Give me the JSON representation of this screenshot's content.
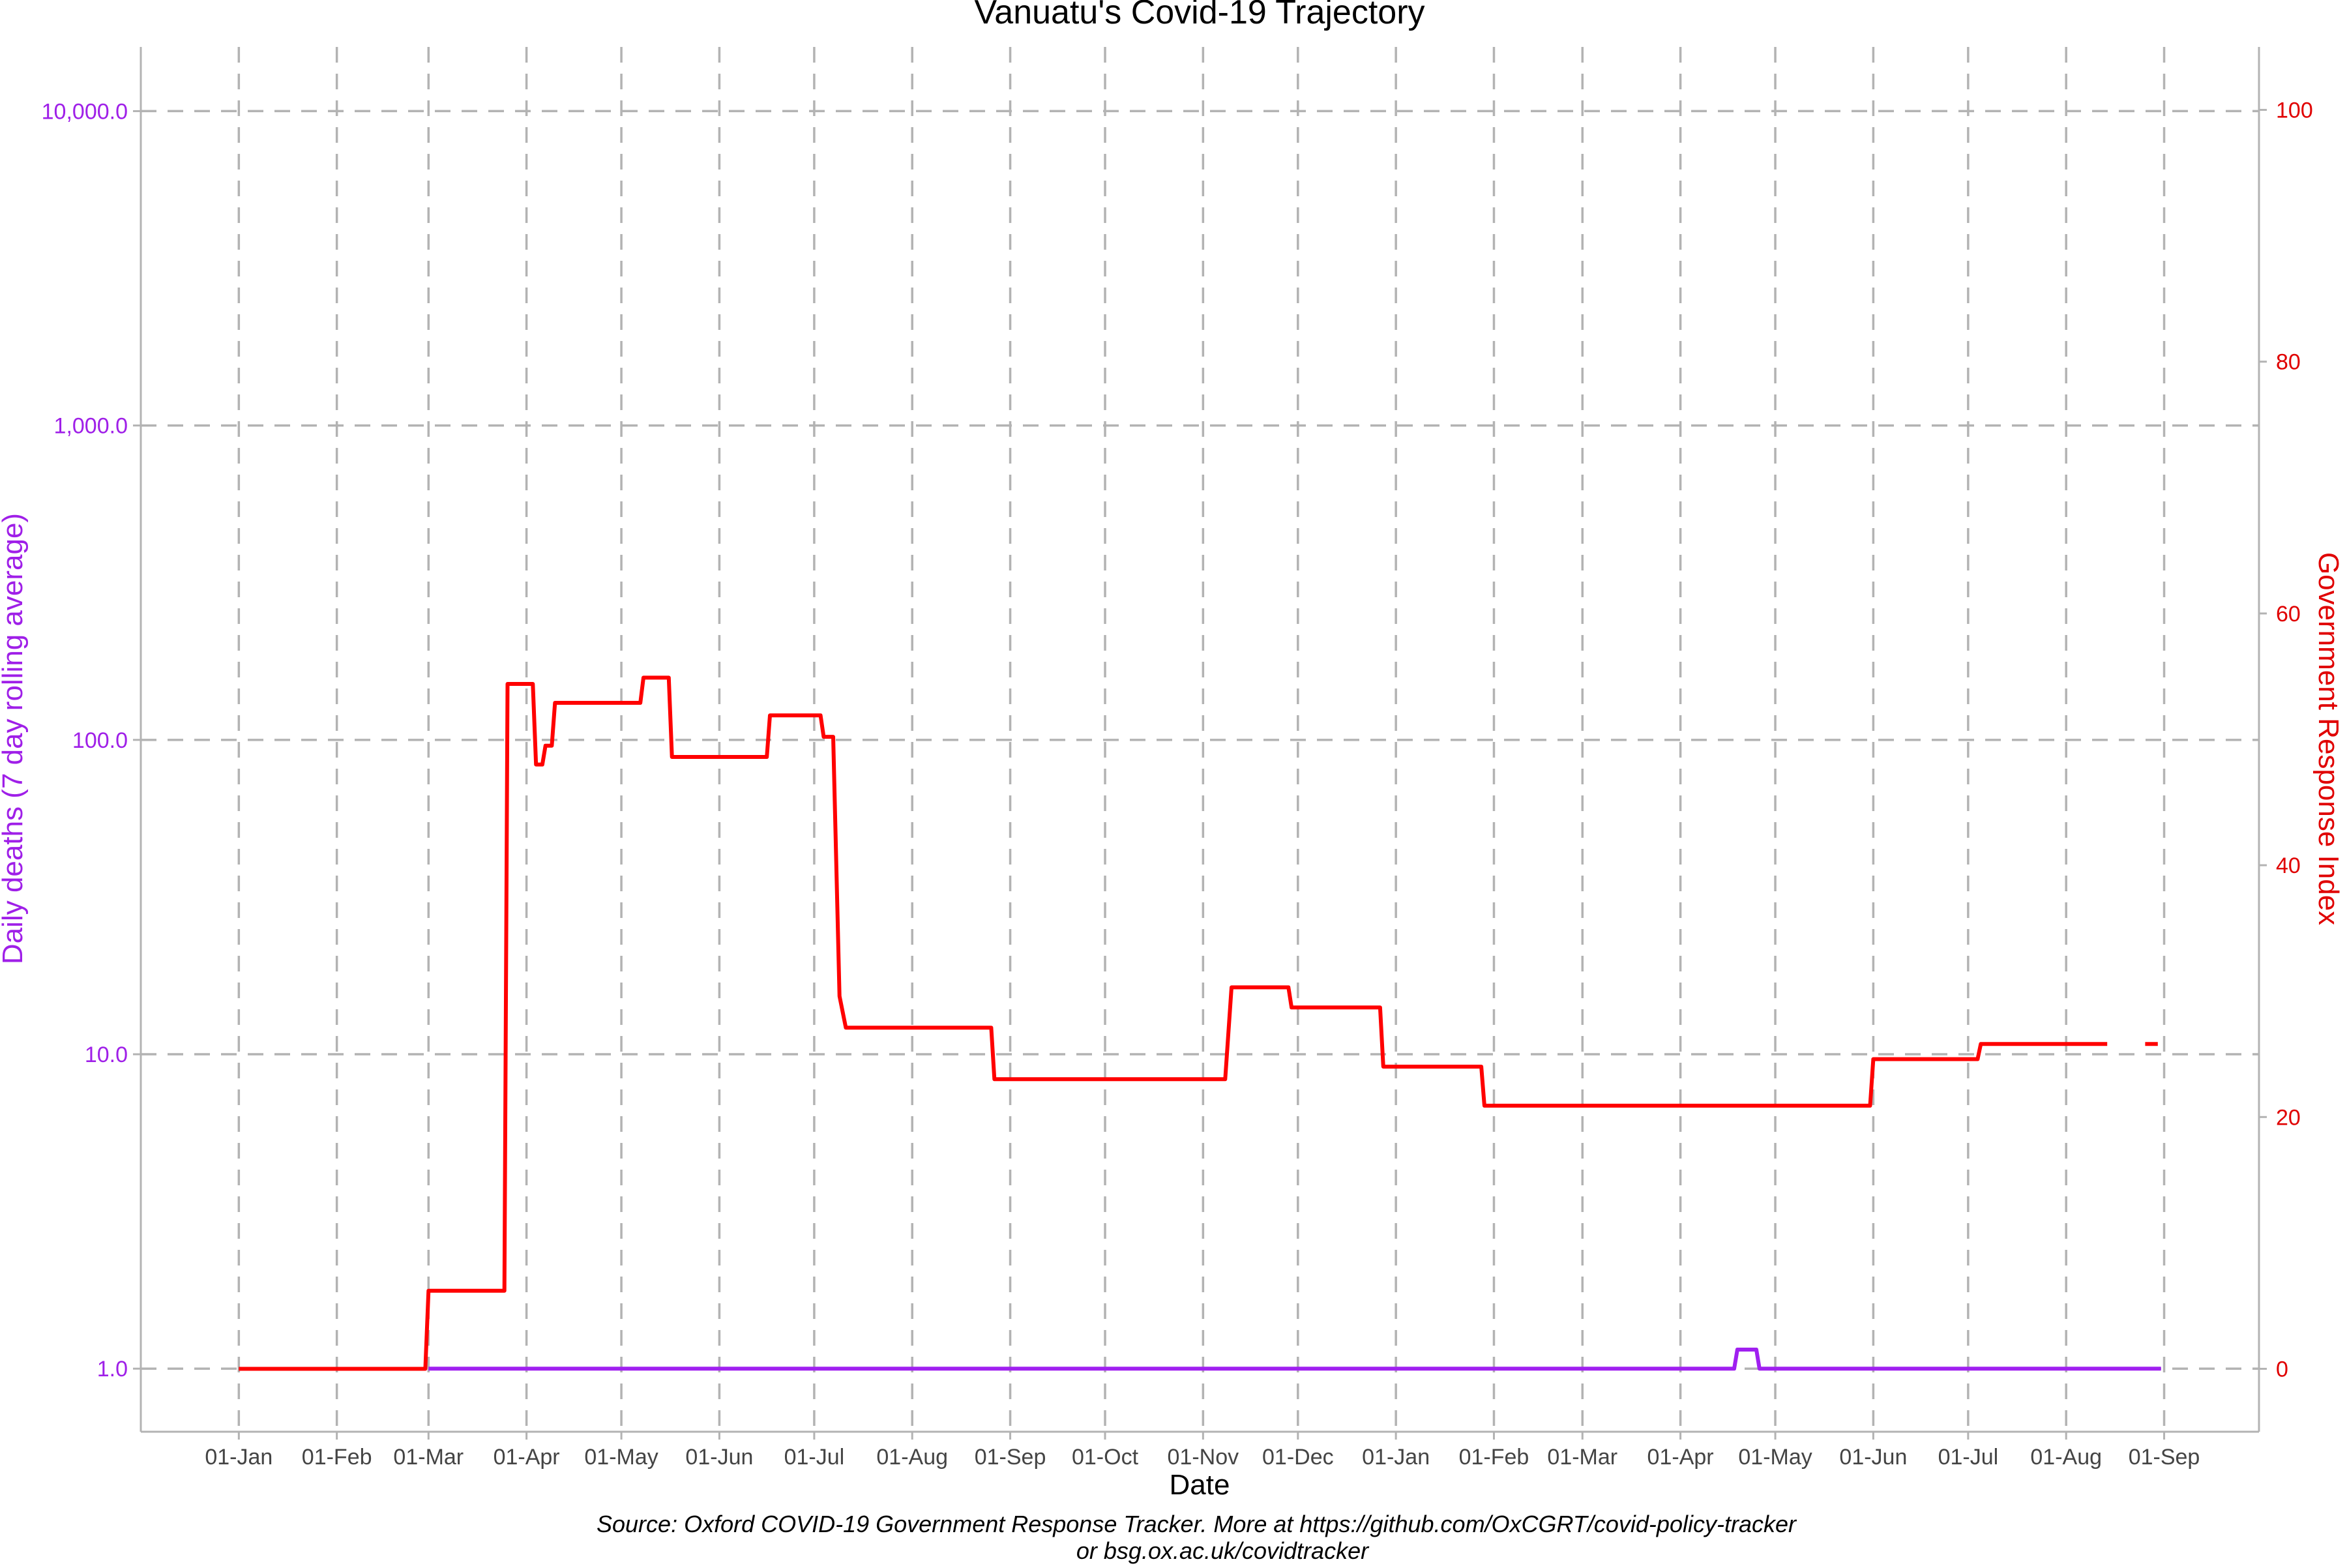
{
  "chart_data": {
    "type": "line",
    "title": "Vanuatu's Covid-19 Trajectory",
    "xlabel": "Date",
    "ylabel_left": "Daily deaths (7 day rolling average)",
    "ylabel_right": "Government Response Index",
    "caption_line1": "Source: Oxford COVID-19 Government Response Tracker. More at https://github.com/OxCGRT/covid-policy-tracker",
    "caption_line2": "or bsg.ox.ac.uk/covidtracker",
    "x_ticks": [
      {
        "label": "01-Jan",
        "date": "2020-01-01"
      },
      {
        "label": "01-Feb",
        "date": "2020-02-01"
      },
      {
        "label": "01-Mar",
        "date": "2020-03-01"
      },
      {
        "label": "01-Apr",
        "date": "2020-04-01"
      },
      {
        "label": "01-May",
        "date": "2020-05-01"
      },
      {
        "label": "01-Jun",
        "date": "2020-06-01"
      },
      {
        "label": "01-Jul",
        "date": "2020-07-01"
      },
      {
        "label": "01-Aug",
        "date": "2020-08-01"
      },
      {
        "label": "01-Sep",
        "date": "2020-09-01"
      },
      {
        "label": "01-Oct",
        "date": "2020-10-01"
      },
      {
        "label": "01-Nov",
        "date": "2020-11-01"
      },
      {
        "label": "01-Dec",
        "date": "2020-12-01"
      },
      {
        "label": "01-Jan",
        "date": "2021-01-01"
      },
      {
        "label": "01-Feb",
        "date": "2021-02-01"
      },
      {
        "label": "01-Mar",
        "date": "2021-03-01"
      },
      {
        "label": "01-Apr",
        "date": "2021-04-01"
      },
      {
        "label": "01-May",
        "date": "2021-05-01"
      },
      {
        "label": "01-Jun",
        "date": "2021-06-01"
      },
      {
        "label": "01-Jul",
        "date": "2021-07-01"
      },
      {
        "label": "01-Aug",
        "date": "2021-08-01"
      },
      {
        "label": "01-Sep",
        "date": "2021-09-01"
      }
    ],
    "x_range": [
      "2019-12-01",
      "2021-09-31"
    ],
    "y_left": {
      "scale": "log10",
      "range": [
        0.63,
        16000
      ],
      "ticks": [
        {
          "value": 1,
          "label": "1.0"
        },
        {
          "value": 10,
          "label": "10.0"
        },
        {
          "value": 100,
          "label": "100.0"
        },
        {
          "value": 1000,
          "label": "1,000.0"
        },
        {
          "value": 10000,
          "label": "10,000.0"
        }
      ]
    },
    "y_right": {
      "scale": "linear",
      "range": [
        -5,
        105
      ],
      "ticks": [
        {
          "value": 0,
          "label": "0"
        },
        {
          "value": 20,
          "label": "20"
        },
        {
          "value": 40,
          "label": "40"
        },
        {
          "value": 60,
          "label": "60"
        },
        {
          "value": 80,
          "label": "80"
        },
        {
          "value": 100,
          "label": "100"
        }
      ]
    },
    "grid": true,
    "series": [
      {
        "name": "Daily deaths (7 day rolling average)",
        "axis": "left",
        "color": "#a020f0",
        "points": [
          [
            "2020-03-01",
            1.0
          ],
          [
            "2021-04-18",
            1.0
          ],
          [
            "2021-04-19",
            1.15
          ],
          [
            "2021-04-25",
            1.15
          ],
          [
            "2021-04-26",
            1.0
          ],
          [
            "2021-08-31",
            1.0
          ]
        ]
      },
      {
        "name": "Government Response Index",
        "axis": "right",
        "color": "#ff0000",
        "segments": [
          [
            [
              "2020-01-01",
              0
            ],
            [
              "2020-02-29",
              0
            ],
            [
              "2020-03-01",
              6.2
            ],
            [
              "2020-03-25",
              6.2
            ],
            [
              "2020-03-26",
              54.4
            ],
            [
              "2020-04-03",
              54.4
            ],
            [
              "2020-04-04",
              48.0
            ],
            [
              "2020-04-06",
              48.0
            ],
            [
              "2020-04-07",
              49.5
            ],
            [
              "2020-04-09",
              49.5
            ],
            [
              "2020-04-10",
              52.9
            ],
            [
              "2020-05-07",
              52.9
            ],
            [
              "2020-05-08",
              54.9
            ],
            [
              "2020-05-16",
              54.9
            ],
            [
              "2020-05-17",
              48.6
            ],
            [
              "2020-06-16",
              48.6
            ],
            [
              "2020-06-17",
              51.9
            ],
            [
              "2020-07-03",
              51.9
            ],
            [
              "2020-07-04",
              50.2
            ],
            [
              "2020-07-07",
              50.2
            ],
            [
              "2020-07-09",
              29.6
            ],
            [
              "2020-07-11",
              27.1
            ],
            [
              "2020-08-26",
              27.1
            ],
            [
              "2020-08-27",
              23.0
            ],
            [
              "2020-11-08",
              23.0
            ],
            [
              "2020-11-10",
              30.3
            ],
            [
              "2020-11-28",
              30.3
            ],
            [
              "2020-11-29",
              28.7
            ],
            [
              "2020-12-27",
              28.7
            ],
            [
              "2020-12-28",
              24.0
            ],
            [
              "2021-01-28",
              24.0
            ],
            [
              "2021-01-29",
              20.9
            ],
            [
              "2021-05-31",
              20.9
            ],
            [
              "2021-06-01",
              24.6
            ],
            [
              "2021-07-04",
              24.6
            ],
            [
              "2021-07-05",
              25.8
            ],
            [
              "2021-08-14",
              25.8
            ]
          ],
          [
            [
              "2021-08-26",
              25.8
            ],
            [
              "2021-08-30",
              25.8
            ]
          ]
        ]
      }
    ]
  }
}
